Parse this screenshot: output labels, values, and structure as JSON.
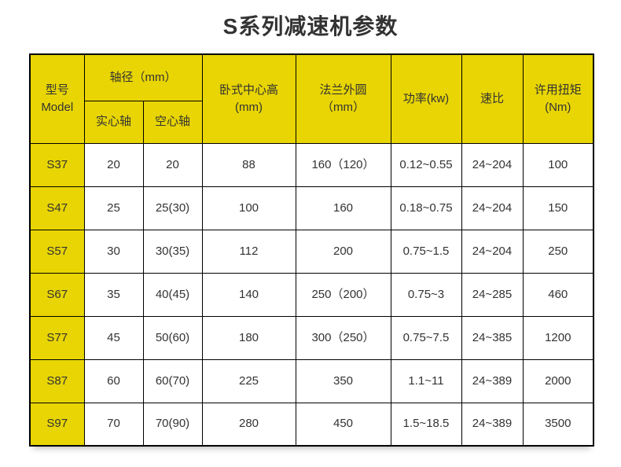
{
  "page": {
    "title": "S系列减速机参数"
  },
  "colors": {
    "header_bg": "#e8d503",
    "border": "#000000",
    "text": "#333333"
  },
  "table": {
    "headers": {
      "model_line1": "型号",
      "model_line2": "Model",
      "shaft_group": "轴径（mm）",
      "solid": "实心轴",
      "hollow": "空心轴",
      "center_height_line1": "卧式中心高",
      "center_height_line2": "(mm)",
      "flange_line1": "法兰外圆",
      "flange_line2": "（mm）",
      "power": "功率(kw)",
      "ratio": "速比",
      "torque_line1": "许用扭矩",
      "torque_line2": "(Nm)"
    },
    "rows": [
      [
        "S37",
        "20",
        "20",
        "88",
        "160（120）",
        "0.12~0.55",
        "24~204",
        "100"
      ],
      [
        "S47",
        "25",
        "25(30)",
        "100",
        "160",
        "0.18~0.75",
        "24~204",
        "150"
      ],
      [
        "S57",
        "30",
        "30(35)",
        "112",
        "200",
        "0.75~1.5",
        "24~204",
        "250"
      ],
      [
        "S67",
        "35",
        "40(45)",
        "140",
        "250（200）",
        "0.75~3",
        "24~285",
        "460"
      ],
      [
        "S77",
        "45",
        "50(60)",
        "180",
        "300（250）",
        "0.75~7.5",
        "24~385",
        "1200"
      ],
      [
        "S87",
        "60",
        "60(70)",
        "225",
        "350",
        "1.1~11",
        "24~389",
        "2000"
      ],
      [
        "S97",
        "70",
        "70(90)",
        "280",
        "450",
        "1.5~18.5",
        "24~389",
        "3500"
      ]
    ]
  }
}
